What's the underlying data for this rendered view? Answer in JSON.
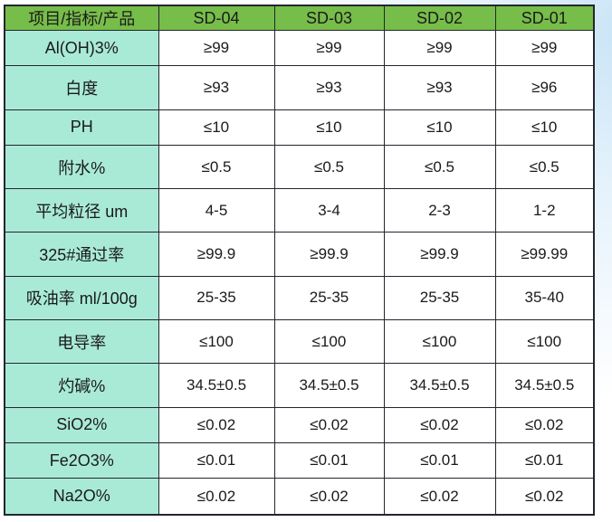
{
  "colors": {
    "header_bg": "#77bd4a",
    "label_bg": "#a9ead6",
    "cell_bg": "#ffffff",
    "border": "#22262e",
    "text": "#1a1a1a"
  },
  "chart_data": {
    "type": "table",
    "columns": [
      "项目/指标/产品",
      "SD-04",
      "SD-03",
      "SD-02",
      "SD-01"
    ],
    "rows": [
      {
        "label": "Al(OH)3%",
        "values": [
          "≥99",
          "≥99",
          "≥99",
          "≥99"
        ]
      },
      {
        "label": "白度",
        "values": [
          "≥93",
          "≥93",
          "≥93",
          "≥96"
        ]
      },
      {
        "label": "PH",
        "values": [
          "≤10",
          "≤10",
          "≤10",
          "≤10"
        ]
      },
      {
        "label": "附水%",
        "values": [
          "≤0.5",
          "≤0.5",
          "≤0.5",
          "≤0.5"
        ]
      },
      {
        "label": "平均粒径 um",
        "values": [
          "4-5",
          "3-4",
          "2-3",
          "1-2"
        ]
      },
      {
        "label": "325#通过率",
        "values": [
          "≥99.9",
          "≥99.9",
          "≥99.9",
          "≥99.99"
        ]
      },
      {
        "label": "吸油率 ml/100g",
        "values": [
          "25-35",
          "25-35",
          "25-35",
          "35-40"
        ]
      },
      {
        "label": "电导率",
        "values": [
          "≤100",
          "≤100",
          "≤100",
          "≤100"
        ]
      },
      {
        "label": "灼碱%",
        "values": [
          "34.5±0.5",
          "34.5±0.5",
          "34.5±0.5",
          "34.5±0.5"
        ]
      },
      {
        "label": "SiO2%",
        "values": [
          "≤0.02",
          "≤0.02",
          "≤0.02",
          "≤0.02"
        ]
      },
      {
        "label": "Fe2O3%",
        "values": [
          "≤0.01",
          "≤0.01",
          "≤0.01",
          "≤0.01"
        ]
      },
      {
        "label": "Na2O%",
        "values": [
          "≤0.02",
          "≤0.02",
          "≤0.02",
          "≤0.02"
        ]
      }
    ]
  }
}
